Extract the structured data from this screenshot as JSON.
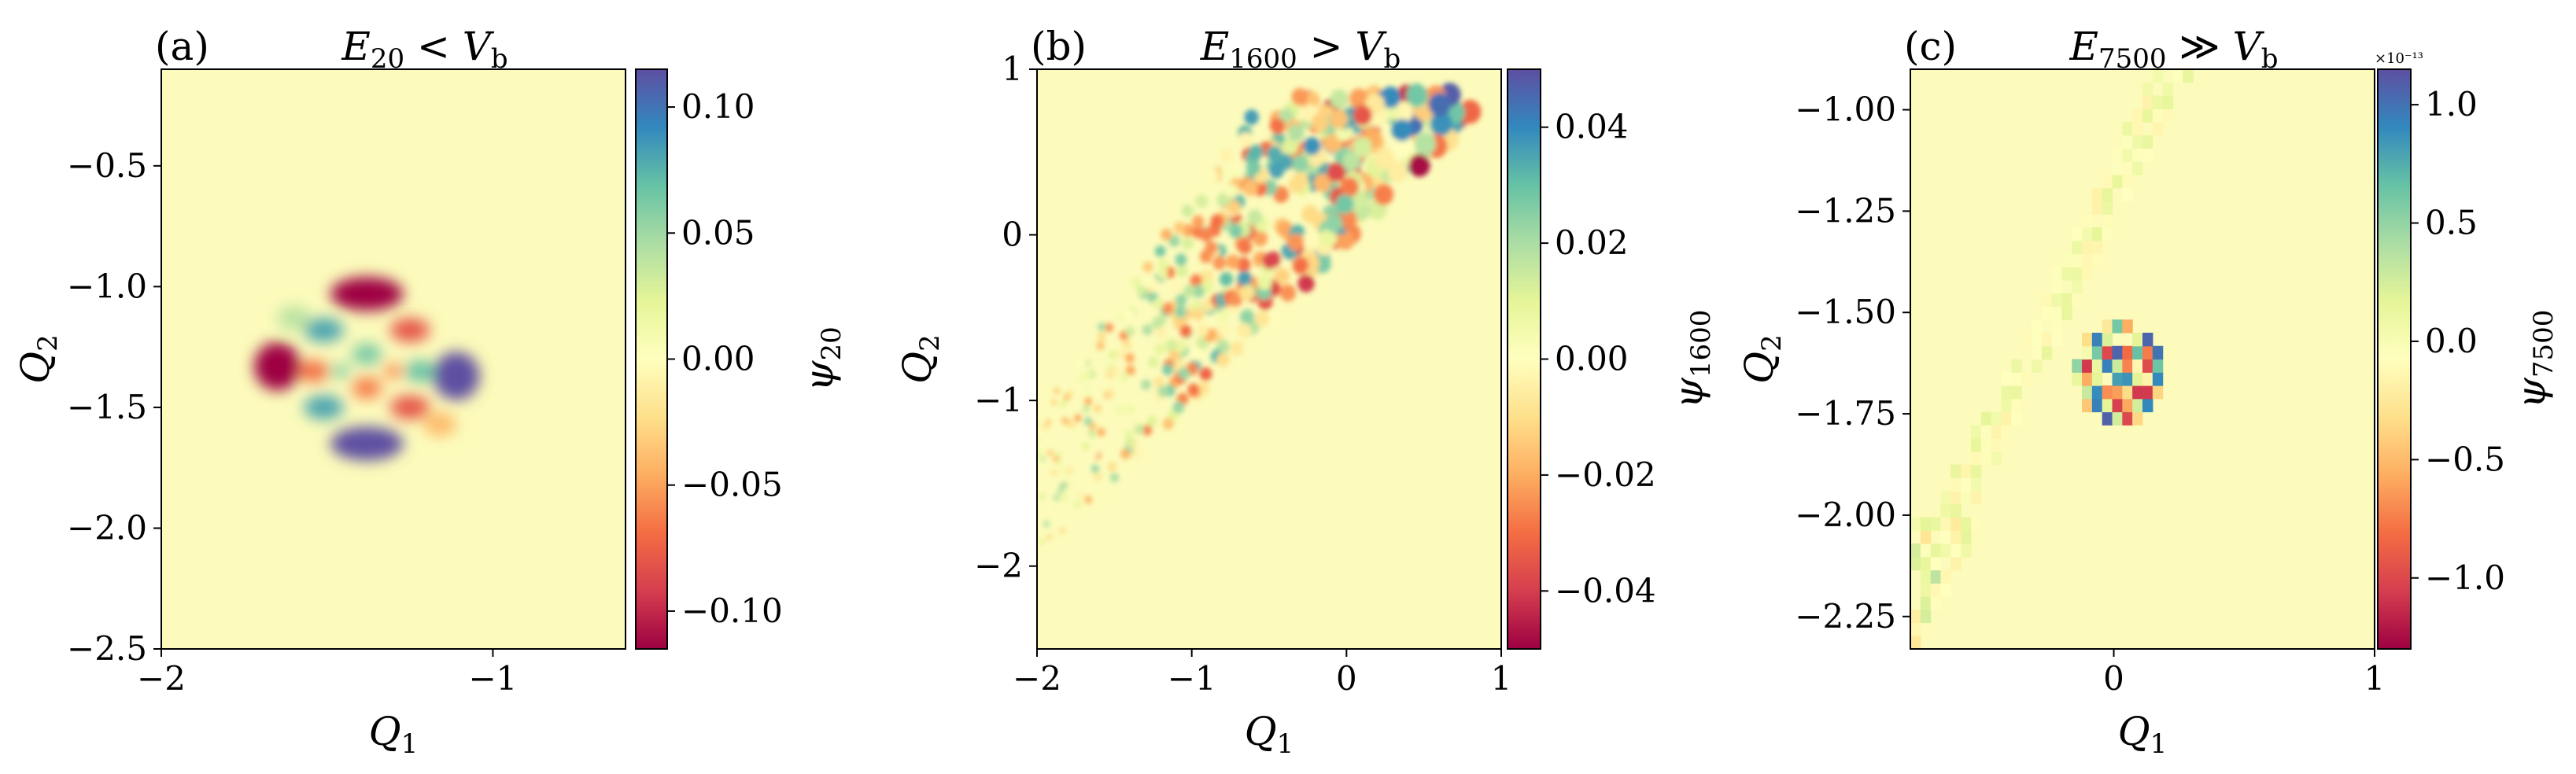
{
  "chart_data": [
    {
      "type": "heatmap",
      "panel_label": "(a)",
      "title": {
        "E": "E",
        "sub": "20",
        "rel": "<",
        "V": "V",
        "vsub": "b"
      },
      "xlabel": {
        "main": "Q",
        "sub": "1"
      },
      "ylabel": {
        "main": "Q",
        "sub": "2"
      },
      "xlim": [
        -2.0,
        -0.6
      ],
      "ylim": [
        -2.5,
        -0.1
      ],
      "xticks": [
        -2,
        -1
      ],
      "xtick_labels": [
        "−2",
        "−1"
      ],
      "yticks": [
        -2.5,
        -2.0,
        -1.5,
        -1.0,
        -0.5
      ],
      "ytick_labels": [
        "−2.5",
        "−2.0",
        "−1.5",
        "−1.0",
        "−0.5"
      ],
      "colorbar": {
        "label": {
          "main": "ψ",
          "sub": "20"
        },
        "range": [
          -0.115,
          0.115
        ],
        "ticks": [
          -0.1,
          -0.05,
          0.0,
          0.05,
          0.1
        ],
        "tick_labels": [
          "−0.10",
          "−0.05",
          "0.00",
          "0.05",
          "0.10"
        ],
        "exponent_label": ""
      },
      "colormap": "Spectral",
      "description": "localized eigenstate, 4-fold lobe pattern centered near (-1.38, -1.35)"
    },
    {
      "type": "heatmap",
      "panel_label": "(b)",
      "title": {
        "E": "E",
        "sub": "1600",
        "rel": ">",
        "V": "V",
        "vsub": "b"
      },
      "xlabel": {
        "main": "Q",
        "sub": "1"
      },
      "ylabel": {
        "main": "Q",
        "sub": "2"
      },
      "xlim": [
        -2.0,
        1.0
      ],
      "ylim": [
        -2.5,
        1.0
      ],
      "xticks": [
        -2,
        -1,
        0,
        1
      ],
      "xtick_labels": [
        "−2",
        "−1",
        "0",
        "1"
      ],
      "yticks": [
        -2,
        -1,
        0,
        1
      ],
      "ytick_labels": [
        "−2",
        "−1",
        "0",
        "1"
      ],
      "colorbar": {
        "label": {
          "main": "ψ",
          "sub": "1600"
        },
        "range": [
          -0.05,
          0.05
        ],
        "ticks": [
          -0.04,
          -0.02,
          0.0,
          0.02,
          0.04
        ],
        "tick_labels": [
          "−0.04",
          "−0.02",
          "0.00",
          "0.02",
          "0.04"
        ],
        "exponent_label": ""
      },
      "colormap": "Spectral",
      "description": "delocalized high-energy eigenstate spread along a diagonal band"
    },
    {
      "type": "heatmap",
      "panel_label": "(c)",
      "title": {
        "E": "E",
        "sub": "7500",
        "rel": "≫",
        "V": "V",
        "vsub": "b"
      },
      "xlabel": {
        "main": "Q",
        "sub": "1"
      },
      "ylabel": {
        "main": "Q",
        "sub": "2"
      },
      "xlim": [
        -0.78,
        1.0
      ],
      "ylim": [
        -2.33,
        -0.9
      ],
      "xticks": [
        0,
        1
      ],
      "xtick_labels": [
        "0",
        "1"
      ],
      "yticks": [
        -2.25,
        -2.0,
        -1.75,
        -1.5,
        -1.25,
        -1.0
      ],
      "ytick_labels": [
        "−2.25",
        "−2.00",
        "−1.75",
        "−1.50",
        "−1.25",
        "−1.00"
      ],
      "colorbar": {
        "label": {
          "main": "ψ",
          "sub": "7500"
        },
        "range": [
          -1.3,
          1.15
        ],
        "ticks": [
          -1.0,
          -0.5,
          0.0,
          0.5,
          1.0
        ],
        "tick_labels": [
          "−1.0",
          "−0.5",
          "0.0",
          "0.5",
          "1.0"
        ],
        "exponent_label": "×10⁻¹³"
      },
      "colormap": "Spectral",
      "description": "coarse pixelated state with cluster near (0.0, -1.65) and diagonal streak"
    }
  ]
}
